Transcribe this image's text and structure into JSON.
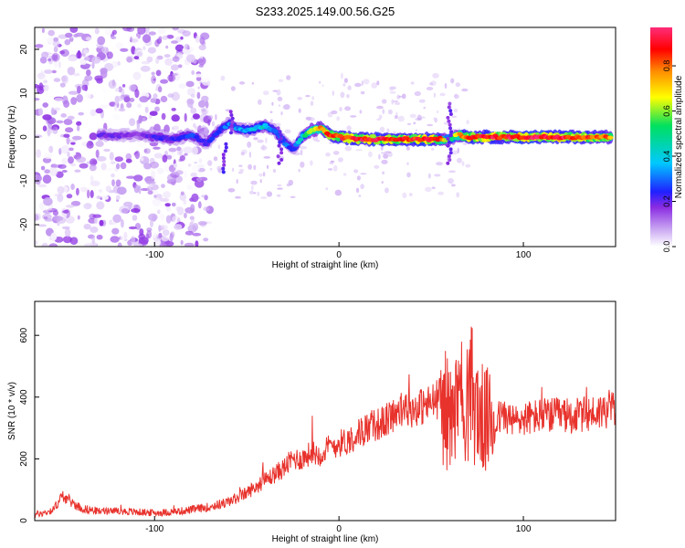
{
  "figure_title": "S233.2025.149.00.56.G25",
  "colors": {
    "snr_line": "#e8322c",
    "ridge_colormap": [
      "#ffffff",
      "#c9a6f2",
      "#8a2be2",
      "#2020ff",
      "#00c8ff",
      "#00e060",
      "#ffff00",
      "#ff8c00",
      "#ff0000",
      "#ff2d7a"
    ]
  },
  "chart_data": [
    {
      "type": "heatmap",
      "title": "S233.2025.149.00.56.G25",
      "xlabel": "Height of straight line (km)",
      "ylabel": "Frequency (Hz)",
      "xlim": [
        -165,
        150
      ],
      "ylim": [
        -25,
        25
      ],
      "xticks": [
        -100,
        0,
        100
      ],
      "yticks": [
        -20,
        -10,
        0,
        10,
        20
      ],
      "colorbar": {
        "label": "Normalized spectral amplitude",
        "range": [
          0.0,
          0.97
        ],
        "ticks": [
          0.0,
          0.2,
          0.4,
          0.6,
          0.8
        ]
      },
      "ridge": {
        "x": [
          -130,
          -120,
          -110,
          -100,
          -90,
          -80,
          -72,
          -65,
          -60,
          -55,
          -50,
          -45,
          -40,
          -35,
          -30,
          -25,
          -20,
          -15,
          -10,
          -5,
          0,
          10,
          20,
          30,
          40,
          50,
          55,
          60,
          65,
          70,
          80,
          90,
          100,
          110,
          120,
          130,
          140,
          148
        ],
        "y": [
          0.5,
          0.3,
          0.5,
          0.0,
          -0.5,
          0.5,
          -1.5,
          1.5,
          3.0,
          2.0,
          1.5,
          2.0,
          2.5,
          1.5,
          -1.0,
          -3.0,
          0.0,
          1.5,
          2.0,
          0.5,
          0.0,
          -0.5,
          -0.5,
          -0.5,
          -0.5,
          -0.5,
          -0.5,
          -0.5,
          0.5,
          0.0,
          0.0,
          0.0,
          0.0,
          0.0,
          0.0,
          0.0,
          0.0,
          0.0
        ],
        "amplitude": [
          0.25,
          0.25,
          0.2,
          0.3,
          0.3,
          0.35,
          0.3,
          0.35,
          0.4,
          0.4,
          0.45,
          0.45,
          0.5,
          0.4,
          0.4,
          0.35,
          0.5,
          0.65,
          0.75,
          0.85,
          0.9,
          0.92,
          0.92,
          0.88,
          0.9,
          0.92,
          0.85,
          0.5,
          0.75,
          0.9,
          0.92,
          0.92,
          0.95,
          0.95,
          0.95,
          0.9,
          0.85,
          0.8
        ]
      },
      "noise_region_x": [
        -165,
        -80
      ]
    },
    {
      "type": "line",
      "xlabel": "Height of straight line (km)",
      "ylabel": "SNR (10 * v/v)",
      "xlim": [
        -165,
        150
      ],
      "ylim": [
        0,
        710
      ],
      "xticks": [
        -100,
        0,
        100
      ],
      "yticks": [
        0,
        200,
        400,
        600
      ],
      "series": [
        {
          "x": [
            -165,
            -160,
            -155,
            -150,
            -145,
            -140,
            -135,
            -130,
            -120,
            -110,
            -100,
            -90,
            -80,
            -70,
            -60,
            -50,
            -45,
            -40,
            -35,
            -30,
            -25,
            -20,
            -15,
            -10,
            -5,
            0,
            5,
            10,
            15,
            20,
            25,
            30,
            40,
            50,
            55,
            60,
            65,
            70,
            72,
            75,
            78,
            80,
            85,
            90,
            95,
            100,
            110,
            120,
            130,
            140,
            150
          ],
          "y": [
            20,
            25,
            35,
            80,
            60,
            40,
            35,
            30,
            30,
            28,
            25,
            28,
            35,
            45,
            60,
            90,
            110,
            130,
            150,
            170,
            200,
            200,
            220,
            215,
            240,
            250,
            260,
            280,
            300,
            310,
            320,
            350,
            360,
            380,
            400,
            330,
            380,
            400,
            420,
            350,
            330,
            320,
            330,
            340,
            320,
            330,
            340,
            340,
            340,
            350,
            370
          ]
        }
      ]
    }
  ]
}
